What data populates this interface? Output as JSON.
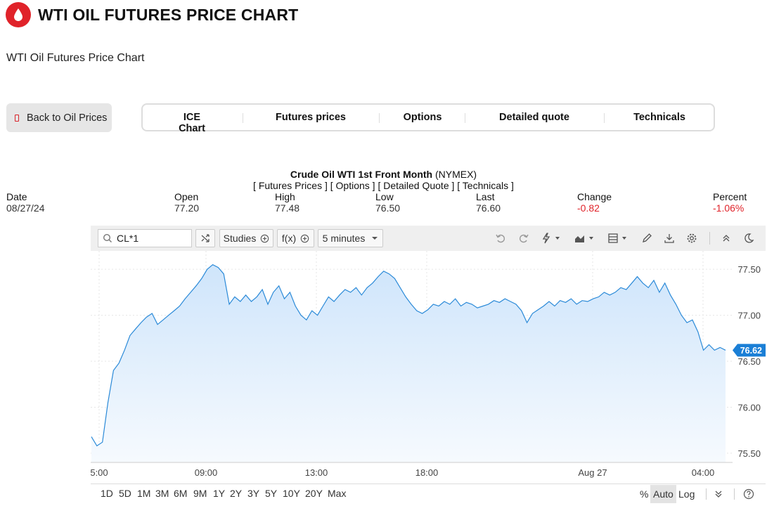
{
  "header": {
    "title": "WTI OIL FUTURES PRICE CHART",
    "subtitle": "WTI Oil Futures Price Chart",
    "brand_color": "#e0232a"
  },
  "back_button": {
    "label": "Back to Oil Prices"
  },
  "tabs": [
    {
      "label": "ICE Chart"
    },
    {
      "label": "Futures prices"
    },
    {
      "label": "Options"
    },
    {
      "label": "Detailed quote"
    },
    {
      "label": "Technicals"
    }
  ],
  "quote": {
    "name": "Crude Oil WTI 1st Front Month",
    "exchange": "(NYMEX)",
    "links": "[ Futures Prices ] [ Options ] [ Detailed Quote ] [ Technicals ]",
    "stats": [
      {
        "label": "Date",
        "value": "08/27/24"
      },
      {
        "label": "Open",
        "value": "77.20"
      },
      {
        "label": "High",
        "value": "77.48"
      },
      {
        "label": "Low",
        "value": "76.50"
      },
      {
        "label": "Last",
        "value": "76.60"
      },
      {
        "label": "Change",
        "value": "-0.82"
      },
      {
        "label": "Percent",
        "value": "-1.06%"
      }
    ]
  },
  "toolbar": {
    "symbol": "CL*1",
    "studies_label": "Studies",
    "fx_label": "f(x)",
    "interval_label": "5 minutes",
    "icons": [
      "undo-icon",
      "redo-icon",
      "lightning-icon",
      "chart-type-icon",
      "layout-icon",
      "pencil-icon",
      "download-icon",
      "gear-icon",
      "collapse-icon",
      "moon-icon"
    ]
  },
  "chart_data": {
    "type": "area",
    "x_tick_labels": [
      "5:00",
      "09:00",
      "13:00",
      "18:00",
      "Aug 27",
      "04:00"
    ],
    "y_tick_labels": [
      "77.50",
      "77.00",
      "76.50",
      "76.00",
      "75.50"
    ],
    "ylim": [
      75.4,
      77.7
    ],
    "last_price_label": "76.62",
    "line_color": "#2b8ad8",
    "fill_color": "#cfe5fb",
    "grid": true,
    "y": [
      75.68,
      75.58,
      75.62,
      76.05,
      76.4,
      76.48,
      76.62,
      76.78,
      76.85,
      76.92,
      76.98,
      77.02,
      76.9,
      76.95,
      77.0,
      77.05,
      77.1,
      77.18,
      77.25,
      77.32,
      77.4,
      77.5,
      77.55,
      77.52,
      77.45,
      77.12,
      77.2,
      77.15,
      77.22,
      77.15,
      77.2,
      77.28,
      77.12,
      77.25,
      77.32,
      77.18,
      77.25,
      77.1,
      77.0,
      76.95,
      77.05,
      77.0,
      77.1,
      77.2,
      77.15,
      77.22,
      77.28,
      77.25,
      77.3,
      77.22,
      77.3,
      77.35,
      77.42,
      77.48,
      77.45,
      77.4,
      77.3,
      77.2,
      77.12,
      77.05,
      77.02,
      77.06,
      77.12,
      77.1,
      77.15,
      77.12,
      77.18,
      77.1,
      77.14,
      77.12,
      77.08,
      77.1,
      77.12,
      77.16,
      77.14,
      77.18,
      77.15,
      77.12,
      77.05,
      76.92,
      77.02,
      77.06,
      77.1,
      77.15,
      77.1,
      77.16,
      77.14,
      77.18,
      77.12,
      77.16,
      77.15,
      77.18,
      77.2,
      77.25,
      77.22,
      77.25,
      77.3,
      77.28,
      77.35,
      77.42,
      77.35,
      77.3,
      77.38,
      77.25,
      77.35,
      77.22,
      77.12,
      77.0,
      76.92,
      76.95,
      76.82,
      76.62,
      76.68,
      76.62,
      76.65,
      76.62
    ]
  },
  "periods": [
    "1D",
    "5D",
    "1M",
    "3M",
    "6M",
    "9M",
    "1Y",
    "2Y",
    "3Y",
    "5Y",
    "10Y",
    "20Y",
    "Max"
  ],
  "scales": {
    "percent": "%",
    "auto": "Auto",
    "log": "Log"
  }
}
